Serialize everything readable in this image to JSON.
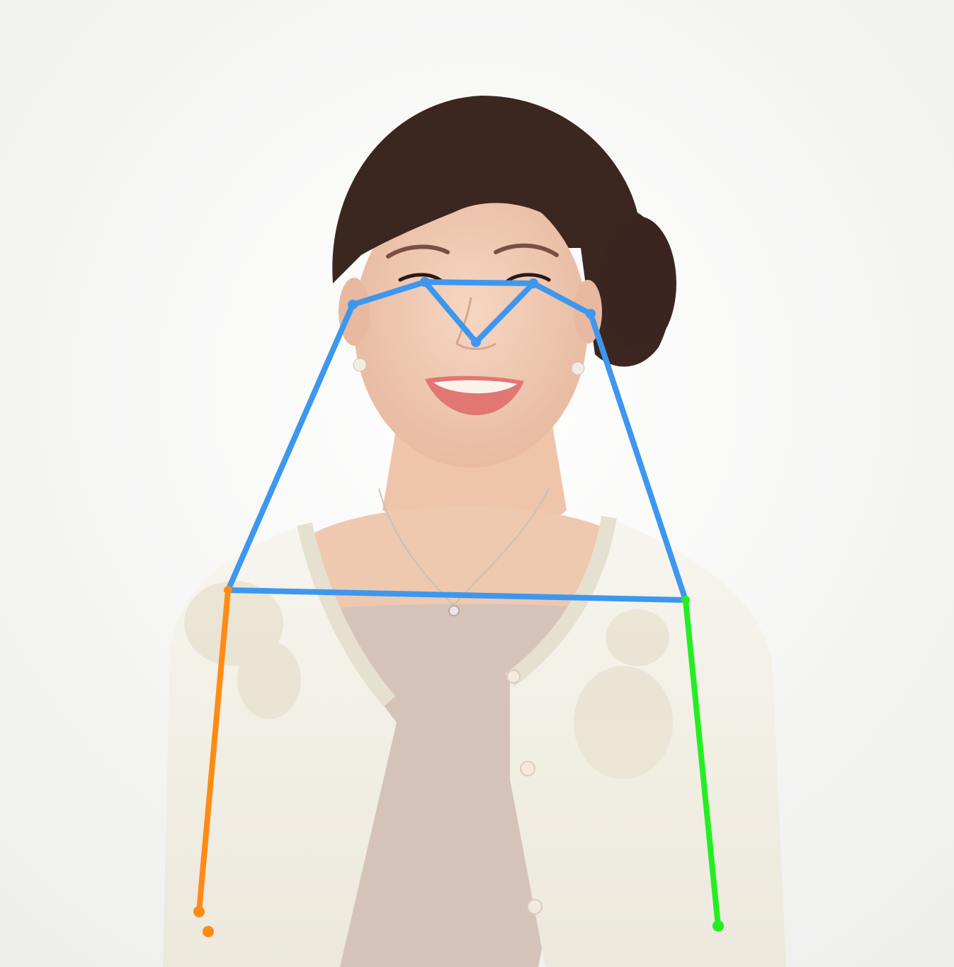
{
  "photo": {
    "subject": "woman-portrait",
    "colors": {
      "background": "#f6f6f4",
      "hair": "#3b2620",
      "skin": "#efc9b2",
      "lips": "#e07772",
      "cardigan": "#f4f1e7",
      "blouse": "#d4c2b8",
      "lace": "#ebe6d8"
    }
  },
  "pose_overlay": {
    "colors": {
      "face_torso": "#3d97ef",
      "right_arm": "#ff8a14",
      "left_arm": "#22ee22"
    },
    "keypoint_names": [
      "nose",
      "right-eye",
      "left-eye",
      "right-ear",
      "left-ear",
      "right-shoulder",
      "left-shoulder",
      "right-elbow",
      "left-elbow",
      "right-wrist"
    ]
  }
}
